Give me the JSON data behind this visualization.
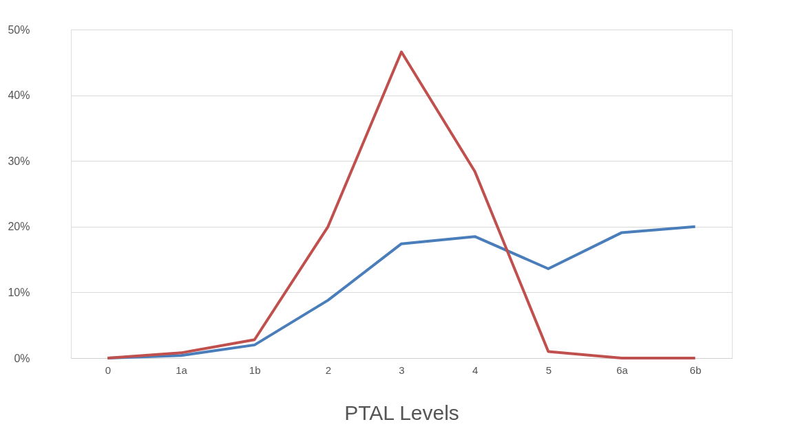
{
  "chart_data": {
    "type": "line",
    "xlabel": "PTAL Levels",
    "categories": [
      "0",
      "1a",
      "1b",
      "2",
      "3",
      "4",
      "5",
      "6a",
      "6b"
    ],
    "series": [
      {
        "color": "#4a7ebb",
        "values": [
          0,
          0.4,
          2.0,
          8.8,
          17.4,
          18.5,
          13.6,
          19.1,
          20.0
        ]
      },
      {
        "color": "#c0504d",
        "values": [
          0,
          0.8,
          2.8,
          20.0,
          46.6,
          28.4,
          1.0,
          0,
          0
        ]
      }
    ],
    "ylim": [
      0,
      50
    ],
    "yticks": [
      {
        "value": 0,
        "label": "0%"
      },
      {
        "value": 10,
        "label": "10%"
      },
      {
        "value": 20,
        "label": "20%"
      },
      {
        "value": 30,
        "label": "30%"
      },
      {
        "value": 40,
        "label": "40%"
      },
      {
        "value": 50,
        "label": "50%"
      }
    ],
    "grid": "y",
    "legend": false,
    "marker": "none",
    "line_style": "solid"
  }
}
